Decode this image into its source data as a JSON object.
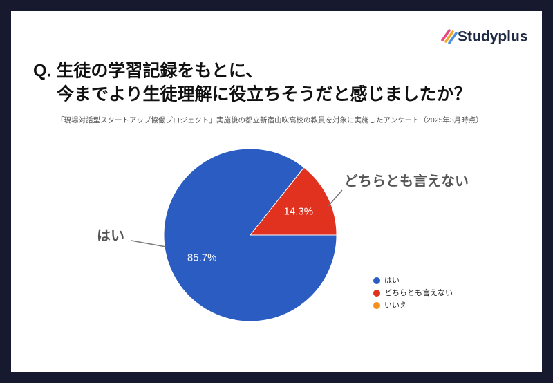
{
  "logo": "Studyplus",
  "chart_data": {
    "type": "pie",
    "title": [
      "Q. 生徒の学習記録をもとに、",
      "今までより生徒理解に役立ちそうだと感じましたか？"
    ],
    "subtitle": "「現場対話型スタートアップ協働プロジェクト」実施後の都立新宿山吹高校の教員を対象に実施したアンケート（2025年3月時点）",
    "categories": [
      "はい",
      "どちらとも言えない",
      "いいえ"
    ],
    "values": [
      85.7,
      14.3,
      0
    ],
    "value_labels": [
      "85.7%",
      "14.3%",
      null
    ],
    "colors": [
      "#2a5cc1",
      "#e0321f",
      "#f5901e"
    ],
    "legend": "right"
  }
}
